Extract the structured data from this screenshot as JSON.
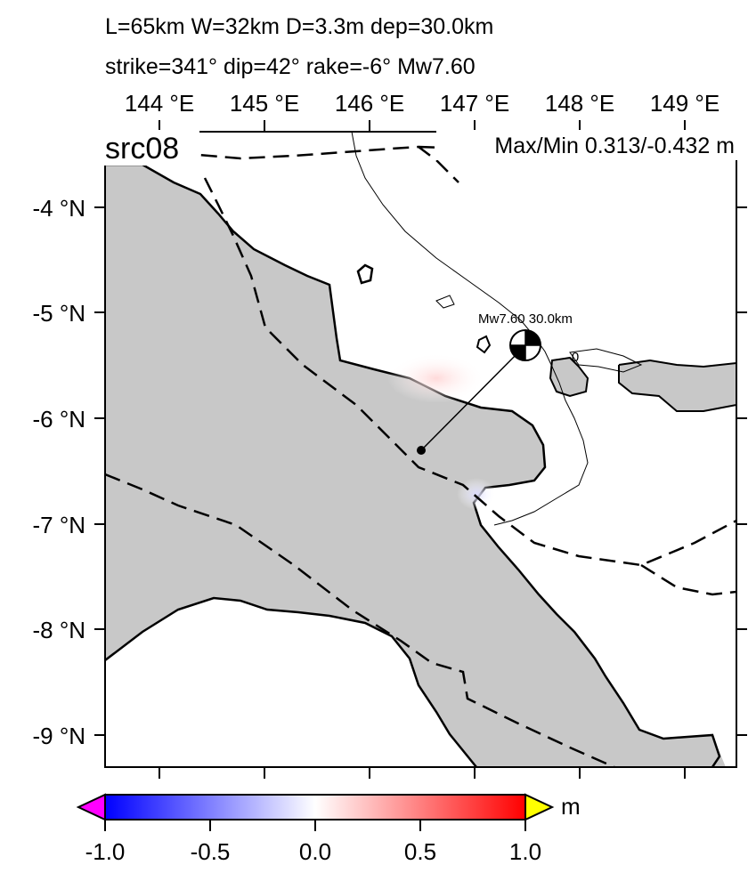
{
  "header": {
    "line1": "L=65km W=32km D=3.3m dep=30.0km",
    "line2": "strike=341° dip=42° rake=-6° Mw7.60"
  },
  "map": {
    "source_label": "src08",
    "maxmin_label": "Max/Min 0.313/-0.432 m",
    "mechanism_label": "Mw7.60  30.0km",
    "contour_label": "0",
    "lon_ticks": [
      "144 °E",
      "145 °E",
      "146 °E",
      "147 °E",
      "148 °E",
      "149 °E"
    ],
    "lat_ticks": [
      "-4 °N",
      "-5 °N",
      "-6 °N",
      "-7 °N",
      "-8 °N",
      "-9 °N"
    ],
    "land_color": "#c8c8c8",
    "sea_color": "#ffffff"
  },
  "colorbar": {
    "unit": "m",
    "ticks": [
      "-1.0",
      "-0.5",
      "0.0",
      "0.5",
      "1.0"
    ],
    "range": [
      -1.0,
      1.0
    ],
    "colors": [
      "#0000ff",
      "#ffffff",
      "#ff0000"
    ],
    "under_color": "#ff00ff",
    "over_color": "#ffff00"
  }
}
